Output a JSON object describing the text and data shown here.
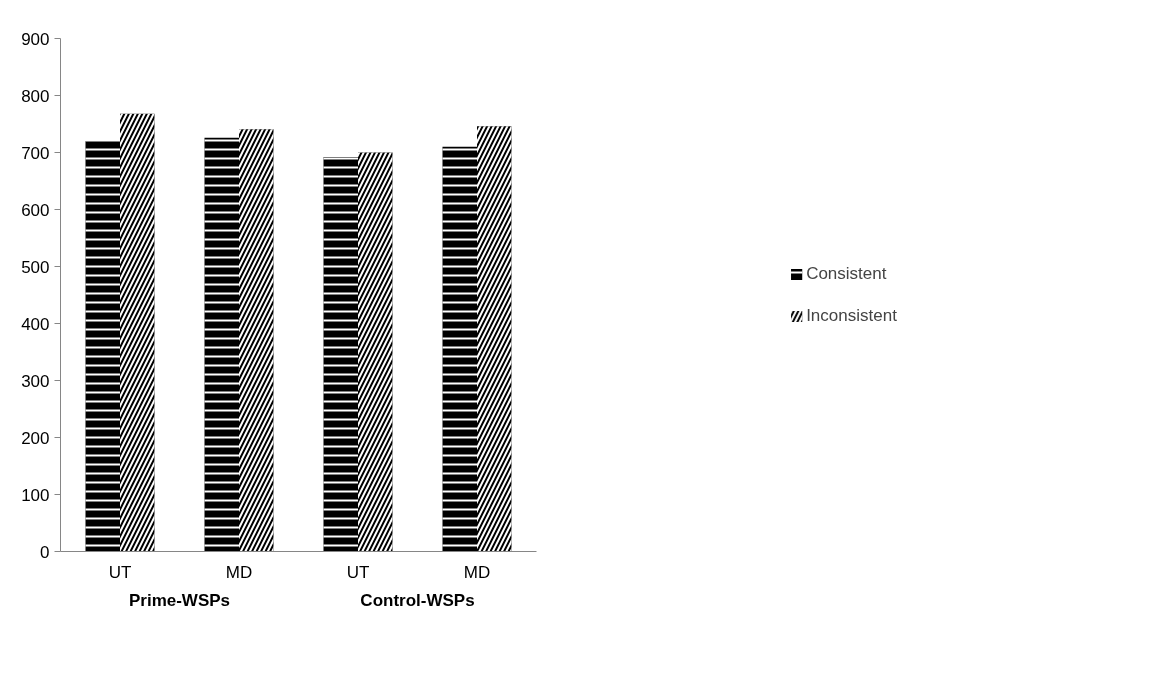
{
  "chart_data": {
    "type": "bar",
    "categories": [
      "UT",
      "MD",
      "UT",
      "MD"
    ],
    "series": [
      {
        "name": "Consistent",
        "color": "#000000",
        "values": [
          720,
          726,
          692,
          710
        ]
      },
      {
        "name": "Inconsistent",
        "color": "#000000",
        "values": [
          768,
          741,
          700,
          746
        ]
      }
    ],
    "annotations": [
      "Prime-WSPs",
      "Control-WSPs"
    ],
    "ylim": [
      0,
      900
    ],
    "yticks": [
      0,
      100,
      200,
      300,
      400,
      500,
      600,
      700,
      800,
      900
    ],
    "grid": false,
    "legend": "right"
  }
}
